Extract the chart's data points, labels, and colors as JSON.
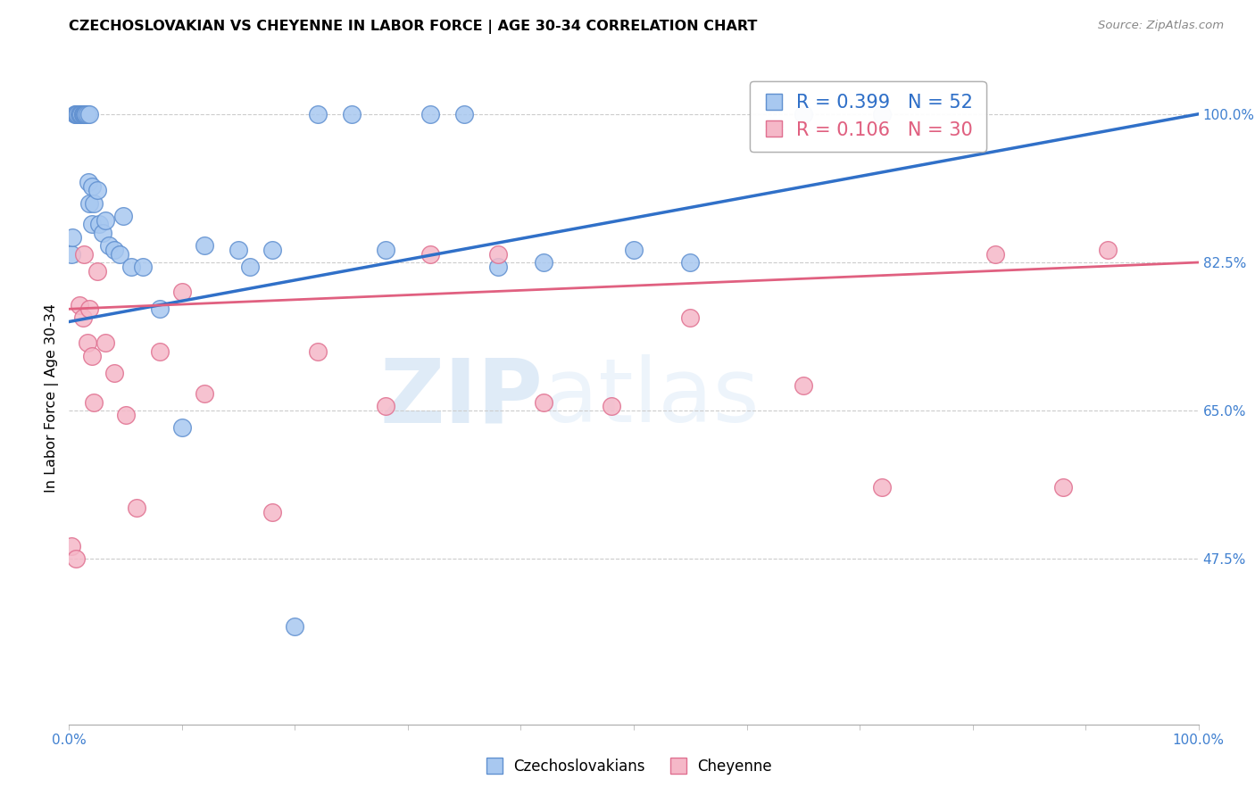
{
  "title": "CZECHOSLOVAKIAN VS CHEYENNE IN LABOR FORCE | AGE 30-34 CORRELATION CHART",
  "source": "Source: ZipAtlas.com",
  "ylabel": "In Labor Force | Age 30-34",
  "xlim": [
    0.0,
    1.0
  ],
  "ylim": [
    0.28,
    1.05
  ],
  "legend_r_blue": "R = 0.399",
  "legend_n_blue": "N = 52",
  "legend_r_pink": "R = 0.106",
  "legend_n_pink": "N = 30",
  "blue_fill": "#a8c8f0",
  "pink_fill": "#f5b8c8",
  "blue_edge": "#6090d0",
  "pink_edge": "#e07090",
  "line_blue": "#3070c8",
  "line_pink": "#e06080",
  "watermark_zip": "ZIP",
  "watermark_atlas": "atlas",
  "grid_color": "#cccccc",
  "background_color": "#ffffff",
  "blue_scatter_x": [
    0.002,
    0.003,
    0.005,
    0.006,
    0.007,
    0.008,
    0.009,
    0.01,
    0.01,
    0.011,
    0.012,
    0.012,
    0.013,
    0.013,
    0.014,
    0.015,
    0.015,
    0.016,
    0.017,
    0.018,
    0.018,
    0.02,
    0.02,
    0.022,
    0.025,
    0.027,
    0.03,
    0.032,
    0.035,
    0.04,
    0.045,
    0.048,
    0.055,
    0.065,
    0.08,
    0.1,
    0.12,
    0.15,
    0.16,
    0.18,
    0.2,
    0.22,
    0.25,
    0.28,
    0.32,
    0.35,
    0.38,
    0.42,
    0.5,
    0.55,
    0.65,
    0.72
  ],
  "blue_scatter_y": [
    0.835,
    0.855,
    1.0,
    1.0,
    1.0,
    1.0,
    1.0,
    1.0,
    1.0,
    1.0,
    1.0,
    1.0,
    1.0,
    1.0,
    1.0,
    1.0,
    1.0,
    1.0,
    0.92,
    1.0,
    0.895,
    0.915,
    0.87,
    0.895,
    0.91,
    0.87,
    0.86,
    0.875,
    0.845,
    0.84,
    0.835,
    0.88,
    0.82,
    0.82,
    0.77,
    0.63,
    0.845,
    0.84,
    0.82,
    0.84,
    0.395,
    1.0,
    1.0,
    0.84,
    1.0,
    1.0,
    0.82,
    0.825,
    0.84,
    0.825,
    1.0,
    1.0
  ],
  "pink_scatter_x": [
    0.002,
    0.006,
    0.009,
    0.012,
    0.013,
    0.016,
    0.018,
    0.02,
    0.022,
    0.025,
    0.032,
    0.04,
    0.05,
    0.06,
    0.08,
    0.1,
    0.12,
    0.18,
    0.22,
    0.28,
    0.32,
    0.38,
    0.42,
    0.48,
    0.55,
    0.65,
    0.72,
    0.82,
    0.88,
    0.92
  ],
  "pink_scatter_y": [
    0.49,
    0.475,
    0.775,
    0.76,
    0.835,
    0.73,
    0.77,
    0.715,
    0.66,
    0.815,
    0.73,
    0.695,
    0.645,
    0.535,
    0.72,
    0.79,
    0.67,
    0.53,
    0.72,
    0.655,
    0.835,
    0.835,
    0.66,
    0.655,
    0.76,
    0.68,
    0.56,
    0.835,
    0.56,
    0.84
  ],
  "blue_trend": [
    0.0,
    1.0,
    0.755,
    1.0
  ],
  "pink_trend": [
    0.0,
    1.0,
    0.77,
    0.825
  ],
  "right_yticks": [
    0.475,
    0.65,
    0.825,
    1.0
  ],
  "right_yticklabels": [
    "47.5%",
    "65.0%",
    "82.5%",
    "100.0%"
  ],
  "grid_yticks": [
    0.475,
    0.65,
    0.825,
    1.0
  ]
}
